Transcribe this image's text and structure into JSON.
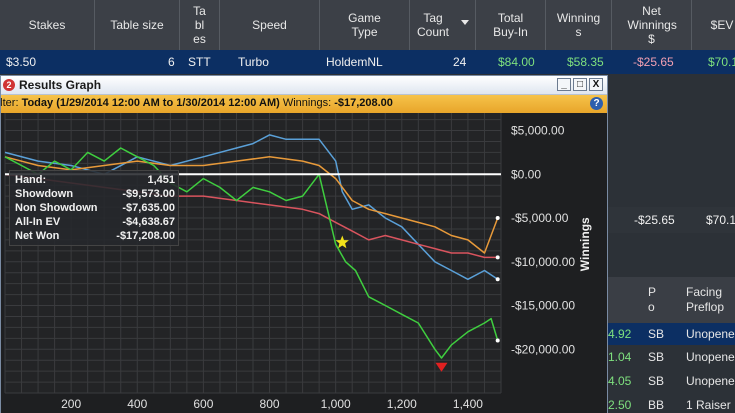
{
  "table": {
    "columns": [
      {
        "label": "Stakes"
      },
      {
        "label": "Table size"
      },
      {
        "label": "Tables"
      },
      {
        "label": "Speed"
      },
      {
        "label": "Game Type"
      },
      {
        "label": "Tag Count"
      },
      {
        "label": "Total Buy-In"
      },
      {
        "label": "Winnings"
      },
      {
        "label": "Net Winnings $"
      },
      {
        "label": "$EV"
      }
    ],
    "row": {
      "stakes": "$3.50",
      "table_size": "6",
      "tables": "STT",
      "speed": "Turbo",
      "game_type": "HoldemNL",
      "tag_count": "24",
      "total_buy_in": "$84.00",
      "winnings": "$58.35",
      "net_winnings": "-$25.65",
      "ev": "$70.1"
    }
  },
  "right_panel": {
    "summary_net": "-$25.65",
    "summary_ev": "$70.1",
    "sub_headers": [
      "P o",
      "Facing Preflop"
    ],
    "rows": [
      {
        "value": "4.92",
        "pos": "SB",
        "facing": "Unopened"
      },
      {
        "value": "1.04",
        "pos": "SB",
        "facing": "Unopened"
      },
      {
        "value": "4.05",
        "pos": "SB",
        "facing": "Unopened"
      },
      {
        "value": "2.50",
        "pos": "BB",
        "facing": "1 Raiser"
      }
    ]
  },
  "graph_window": {
    "title": "Results Graph",
    "icon_glyph": "2",
    "buttons": {
      "minimize": "_",
      "maximize": "□",
      "close": "X"
    },
    "filter_prefix": "Filter:",
    "filter_range": "Today (1/29/2014 12:00 AM to 1/30/2014 12:00 AM)",
    "filter_winnings_label": "Winnings:",
    "filter_winnings_value": "-$17,208.00",
    "filter_help": "?"
  },
  "stats": [
    {
      "label": "Hand:",
      "value": "1,451"
    },
    {
      "label": "Showdown",
      "value": "-$9,573.00"
    },
    {
      "label": "Non Showdown",
      "value": "-$7,635.00"
    },
    {
      "label": "All-In EV",
      "value": "-$4,638.67"
    },
    {
      "label": "Net Won",
      "value": "-$17,208.00"
    }
  ],
  "chart_data": {
    "type": "line",
    "ylabel": "Winnings",
    "xlabel": "",
    "xlim": [
      0,
      1500
    ],
    "ylim": [
      -25000,
      7000
    ],
    "x_ticks": [
      200,
      400,
      600,
      800,
      1000,
      1200,
      1400
    ],
    "x_tick_labels": [
      "200",
      "400",
      "600",
      "800",
      "1,000",
      "1,200",
      "1,400"
    ],
    "y_ticks": [
      5000,
      0,
      -5000,
      -10000,
      -15000,
      -20000
    ],
    "y_tick_labels": [
      "$5,000.00",
      "$0.00",
      "-$5,000.00",
      "-$10,000.00",
      "-$15,000.00",
      "-$20,000.00"
    ],
    "grid": true,
    "zero_line_color": "#ffffff",
    "series": [
      {
        "color": "#5aa0d8",
        "x": [
          0,
          100,
          200,
          300,
          400,
          500,
          600,
          700,
          750,
          800,
          850,
          900,
          950,
          1000,
          1020,
          1050,
          1100,
          1150,
          1200,
          1250,
          1300,
          1350,
          1400,
          1450,
          1490
        ],
        "y": [
          2500,
          1500,
          1000,
          0,
          2000,
          1000,
          2000,
          3000,
          3500,
          4500,
          4000,
          4000,
          4000,
          1500,
          -2000,
          -4000,
          -3500,
          -5000,
          -6000,
          -8000,
          -10000,
          -11000,
          -12000,
          -11000,
          -12000
        ]
      },
      {
        "color": "#e89a3a",
        "x": [
          0,
          100,
          200,
          300,
          400,
          500,
          600,
          700,
          800,
          900,
          950,
          1000,
          1050,
          1100,
          1150,
          1200,
          1250,
          1300,
          1350,
          1400,
          1450,
          1490
        ],
        "y": [
          2000,
          1000,
          500,
          1000,
          1500,
          1000,
          1000,
          1500,
          2000,
          1500,
          1000,
          -500,
          -3000,
          -4000,
          -4500,
          -5000,
          -5500,
          -6000,
          -7000,
          -7500,
          -9000,
          -5000
        ]
      },
      {
        "color": "#d9545e",
        "x": [
          0,
          100,
          200,
          300,
          400,
          500,
          600,
          700,
          800,
          900,
          950,
          1000,
          1050,
          1100,
          1150,
          1200,
          1250,
          1300,
          1350,
          1400,
          1450,
          1490
        ],
        "y": [
          0,
          -500,
          -1000,
          -1500,
          -2000,
          -2500,
          -2500,
          -3000,
          -3500,
          -4000,
          -4500,
          -5500,
          -6500,
          -7500,
          -7000,
          -7500,
          -8000,
          -8500,
          -9000,
          -9000,
          -9500,
          -9500
        ]
      },
      {
        "color": "#3fce3f",
        "x": [
          0,
          50,
          100,
          150,
          200,
          250,
          300,
          350,
          400,
          450,
          500,
          550,
          600,
          650,
          700,
          750,
          800,
          850,
          900,
          950,
          1000,
          1030,
          1060,
          1100,
          1150,
          1200,
          1250,
          1300,
          1320,
          1350,
          1400,
          1450,
          1470,
          1490
        ],
        "y": [
          2000,
          1000,
          0,
          1500,
          500,
          2500,
          1500,
          3000,
          2000,
          1000,
          -1000,
          -2000,
          -500,
          -1500,
          -3000,
          -1500,
          -2000,
          -3000,
          -2500,
          0,
          -8000,
          -10000,
          -11000,
          -14000,
          -15000,
          -16000,
          -17000,
          -20000,
          -21000,
          -19500,
          -18000,
          -17000,
          -16500,
          -19000
        ]
      }
    ],
    "markers": [
      {
        "shape": "star",
        "color": "#f2e21a",
        "x": 1020,
        "y": -7800
      },
      {
        "shape": "triangle-down",
        "color": "#e02020",
        "x": 1320,
        "y": -22000
      }
    ]
  }
}
